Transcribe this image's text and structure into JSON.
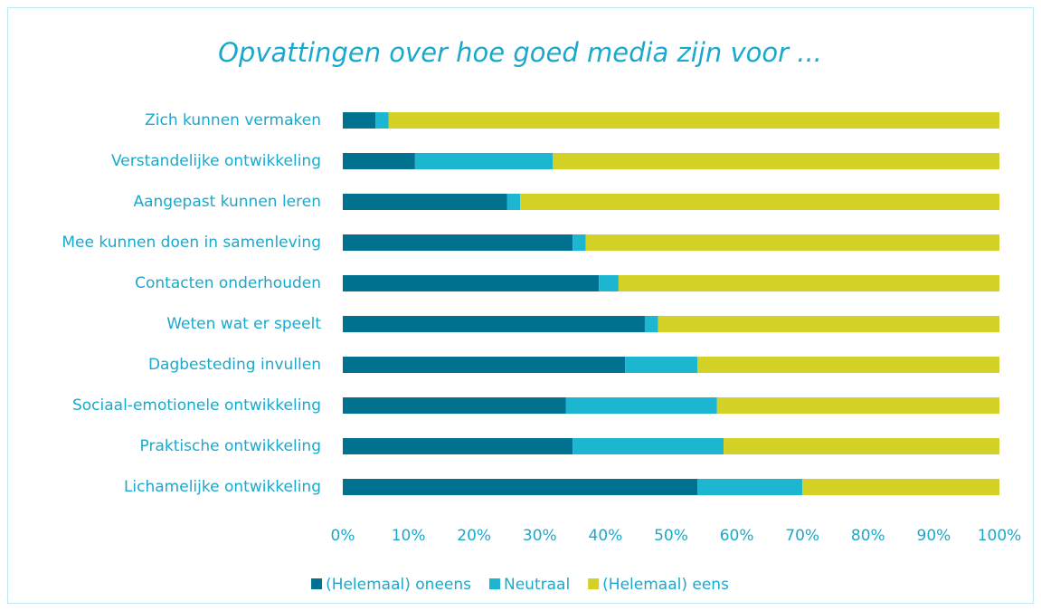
{
  "chart_data": {
    "type": "stacked_bar_horizontal",
    "title": "Opvattingen over hoe goed media zijn voor ...",
    "categories": [
      "Zich kunnen vermaken",
      "Verstandelijke ontwikkeling",
      "Aangepast kunnen leren",
      "Mee kunnen doen in samenleving",
      "Contacten onderhouden",
      "Weten wat er speelt",
      "Dagbesteding invullen",
      "Sociaal-emotionele ontwikkeling",
      "Praktische ontwikkeling",
      "Lichamelijke ontwikkeling"
    ],
    "series": [
      {
        "name": "(Helemaal) oneens",
        "color": "#00718f",
        "values": [
          5,
          11,
          25,
          35,
          39,
          46,
          43,
          34,
          35,
          54
        ]
      },
      {
        "name": "Neutraal",
        "color": "#1db6d0",
        "values": [
          2,
          21,
          2,
          2,
          3,
          2,
          11,
          23,
          23,
          16
        ]
      },
      {
        "name": "(Helemaal) eens",
        "color": "#d4d126",
        "values": [
          93,
          68,
          73,
          63,
          58,
          52,
          46,
          43,
          42,
          30
        ]
      }
    ],
    "xlim": [
      0,
      100
    ],
    "xticks": [
      {
        "value": 0,
        "label": "0%"
      },
      {
        "value": 10,
        "label": "10%"
      },
      {
        "value": 20,
        "label": "20%"
      },
      {
        "value": 30,
        "label": "30%"
      },
      {
        "value": 40,
        "label": "40%"
      },
      {
        "value": 50,
        "label": "50%"
      },
      {
        "value": 60,
        "label": "60%"
      },
      {
        "value": 70,
        "label": "70%"
      },
      {
        "value": 80,
        "label": "80%"
      },
      {
        "value": 90,
        "label": "90%"
      },
      {
        "value": 100,
        "label": "100%"
      }
    ],
    "legend": "bottom"
  }
}
